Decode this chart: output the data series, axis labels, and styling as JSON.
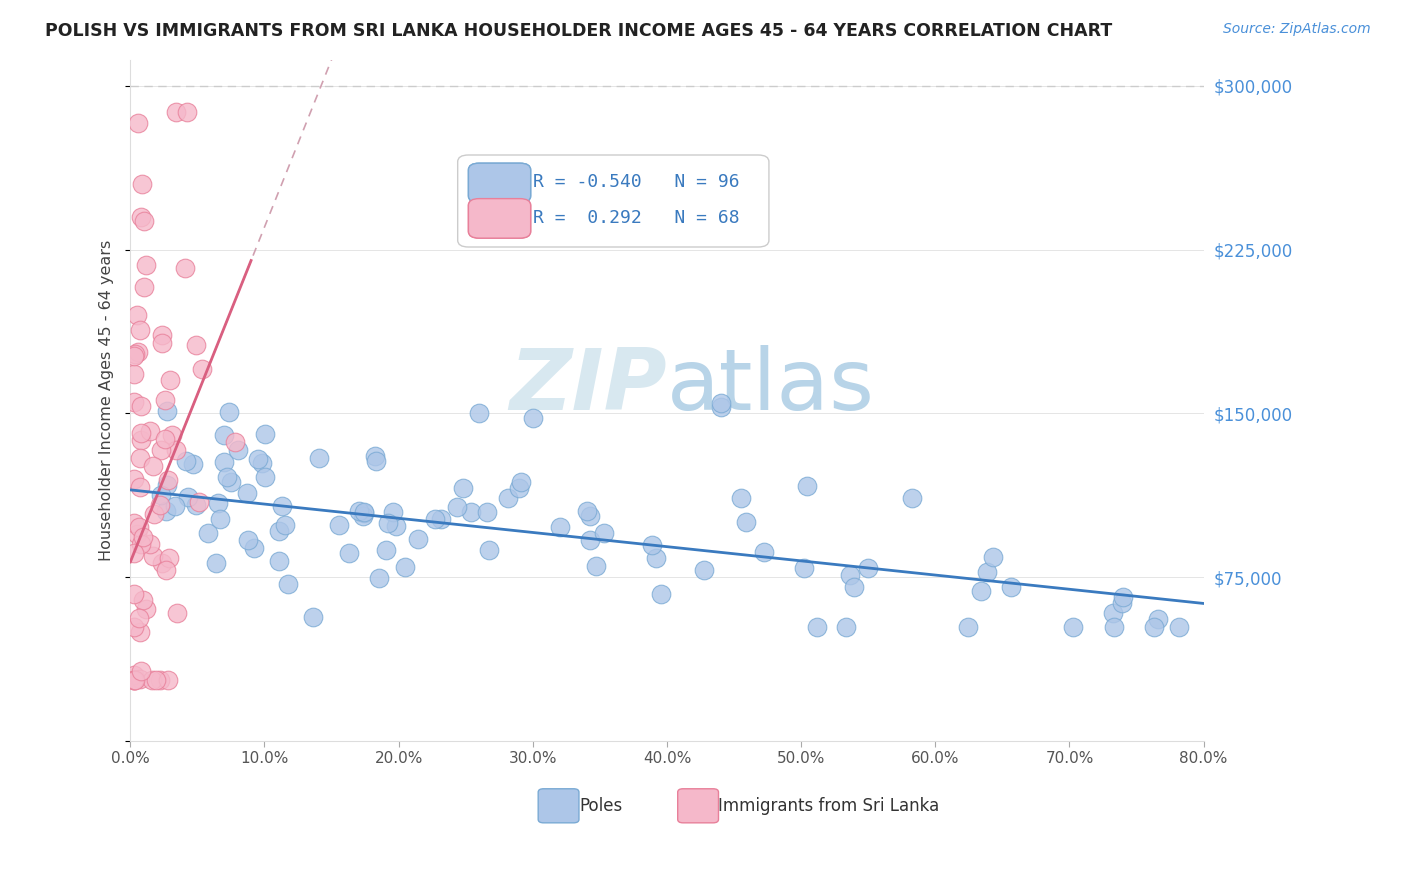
{
  "title": "POLISH VS IMMIGRANTS FROM SRI LANKA HOUSEHOLDER INCOME AGES 45 - 64 YEARS CORRELATION CHART",
  "source": "Source: ZipAtlas.com",
  "ylabel": "Householder Income Ages 45 - 64 years",
  "xlim": [
    0.0,
    0.8
  ],
  "ylim": [
    0,
    312000
  ],
  "xticks": [
    0.0,
    0.1,
    0.2,
    0.3,
    0.4,
    0.5,
    0.6,
    0.7,
    0.8
  ],
  "xtick_labels": [
    "0.0%",
    "10.0%",
    "20.0%",
    "30.0%",
    "40.0%",
    "50.0%",
    "60.0%",
    "70.0%",
    "80.0%"
  ],
  "yticks_right": [
    0,
    75000,
    150000,
    225000,
    300000
  ],
  "ytick_labels_right": [
    "",
    "$75,000",
    "$150,000",
    "$225,000",
    "$300,000"
  ],
  "blue_color": "#adc6e8",
  "blue_edge": "#7aaad4",
  "pink_color": "#f5b8ca",
  "pink_edge": "#e8809a",
  "blue_line_color": "#3a7abf",
  "pink_line_color": "#d95f80",
  "pink_dash_color": "#d0a0b0",
  "watermark_color": "#d8e8f0",
  "legend_label_blue": "Poles",
  "legend_label_pink": "Immigrants from Sri Lanka",
  "blue_R": -0.54,
  "blue_N": 96,
  "pink_R": 0.292,
  "pink_N": 68,
  "blue_line_x0": 0.0,
  "blue_line_x1": 0.8,
  "blue_line_y0": 115000,
  "blue_line_y1": 63000,
  "pink_line_x0": 0.0,
  "pink_line_x1": 0.09,
  "pink_line_y0": 82000,
  "pink_line_y1": 220000
}
